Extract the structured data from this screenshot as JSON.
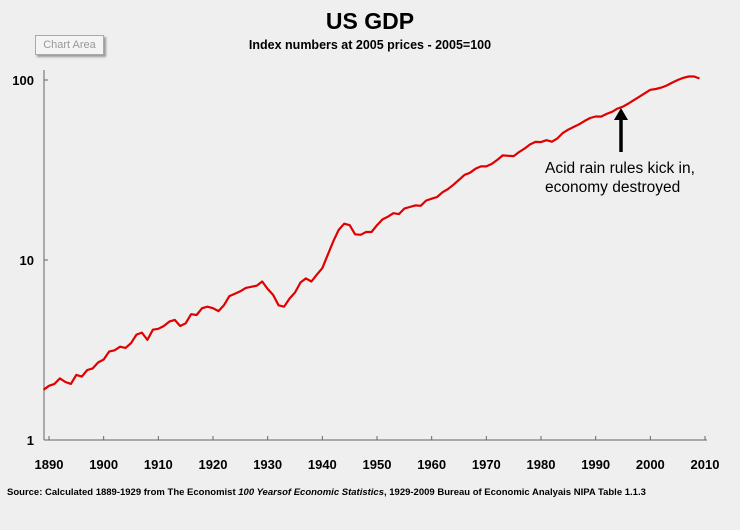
{
  "ui": {
    "chart_area_button": "Chart Area"
  },
  "chart_data": {
    "type": "line",
    "title": "US GDP",
    "subtitle": "Index numbers at 2005 prices - 2005=100",
    "xlabel": "",
    "ylabel": "",
    "y_scale": "log",
    "ylim": [
      1,
      100
    ],
    "xlim": [
      1890,
      2010
    ],
    "grid": false,
    "y_ticks": [
      "1",
      "10",
      "100"
    ],
    "x_ticks": [
      "1890",
      "1900",
      "1910",
      "1920",
      "1930",
      "1940",
      "1950",
      "1960",
      "1970",
      "1980",
      "1990",
      "2000",
      "2010"
    ],
    "line_color": "#e00000",
    "x": [
      1889,
      1890,
      1891,
      1892,
      1893,
      1894,
      1895,
      1896,
      1897,
      1898,
      1899,
      1900,
      1901,
      1902,
      1903,
      1904,
      1905,
      1906,
      1907,
      1908,
      1909,
      1910,
      1911,
      1912,
      1913,
      1914,
      1915,
      1916,
      1917,
      1918,
      1919,
      1920,
      1921,
      1922,
      1923,
      1924,
      1925,
      1926,
      1927,
      1928,
      1929,
      1930,
      1931,
      1932,
      1933,
      1934,
      1935,
      1936,
      1937,
      1938,
      1939,
      1940,
      1941,
      1942,
      1943,
      1944,
      1945,
      1946,
      1947,
      1948,
      1949,
      1950,
      1951,
      1952,
      1953,
      1954,
      1955,
      1956,
      1957,
      1958,
      1959,
      1960,
      1961,
      1962,
      1963,
      1964,
      1965,
      1966,
      1967,
      1968,
      1969,
      1970,
      1971,
      1972,
      1973,
      1974,
      1975,
      1976,
      1977,
      1978,
      1979,
      1980,
      1981,
      1982,
      1983,
      1984,
      1985,
      1986,
      1987,
      1988,
      1989,
      1990,
      1991,
      1992,
      1993,
      1994,
      1995,
      1996,
      1997,
      1998,
      1999,
      2000,
      2001,
      2002,
      2003,
      2004,
      2005,
      2006,
      2007,
      2008,
      2009
    ],
    "values": [
      1.9,
      2.0,
      2.05,
      2.2,
      2.1,
      2.05,
      2.3,
      2.25,
      2.45,
      2.5,
      2.7,
      2.8,
      3.1,
      3.15,
      3.3,
      3.25,
      3.45,
      3.85,
      3.95,
      3.6,
      4.1,
      4.15,
      4.3,
      4.55,
      4.65,
      4.3,
      4.45,
      5.0,
      4.95,
      5.4,
      5.5,
      5.4,
      5.2,
      5.6,
      6.3,
      6.5,
      6.7,
      7.0,
      7.1,
      7.2,
      7.6,
      6.9,
      6.4,
      5.6,
      5.5,
      6.1,
      6.6,
      7.5,
      7.9,
      7.6,
      8.3,
      9.0,
      10.7,
      12.7,
      14.7,
      15.9,
      15.6,
      13.9,
      13.8,
      14.3,
      14.3,
      15.6,
      16.8,
      17.4,
      18.2,
      18.0,
      19.3,
      19.7,
      20.1,
      20.0,
      21.4,
      21.9,
      22.4,
      23.8,
      24.8,
      26.2,
      27.9,
      29.7,
      30.5,
      32.1,
      33.1,
      33.1,
      34.2,
      36.0,
      38.1,
      37.9,
      37.8,
      39.8,
      41.6,
      43.9,
      45.3,
      45.2,
      46.3,
      45.4,
      47.4,
      50.8,
      53.0,
      54.9,
      56.8,
      59.3,
      61.5,
      62.7,
      62.6,
      64.8,
      66.6,
      69.4,
      71.2,
      74.0,
      77.3,
      80.8,
      84.5,
      88.2,
      89.1,
      90.7,
      93.2,
      96.7,
      100,
      102.7,
      104.6,
      104.6,
      101.9
    ],
    "annotation": {
      "lines": [
        "Acid rain rules kick in,",
        "economy destroyed"
      ],
      "arrow_year": 1995
    },
    "source": {
      "prefix": "Source: Calculated  1889-1929 from The Economist ",
      "italic": "100 Yearsof Economic Statistics",
      "suffix": ", 1929-2009 Bureau of Economic Analyais NIPA Table 1.1.3"
    }
  }
}
